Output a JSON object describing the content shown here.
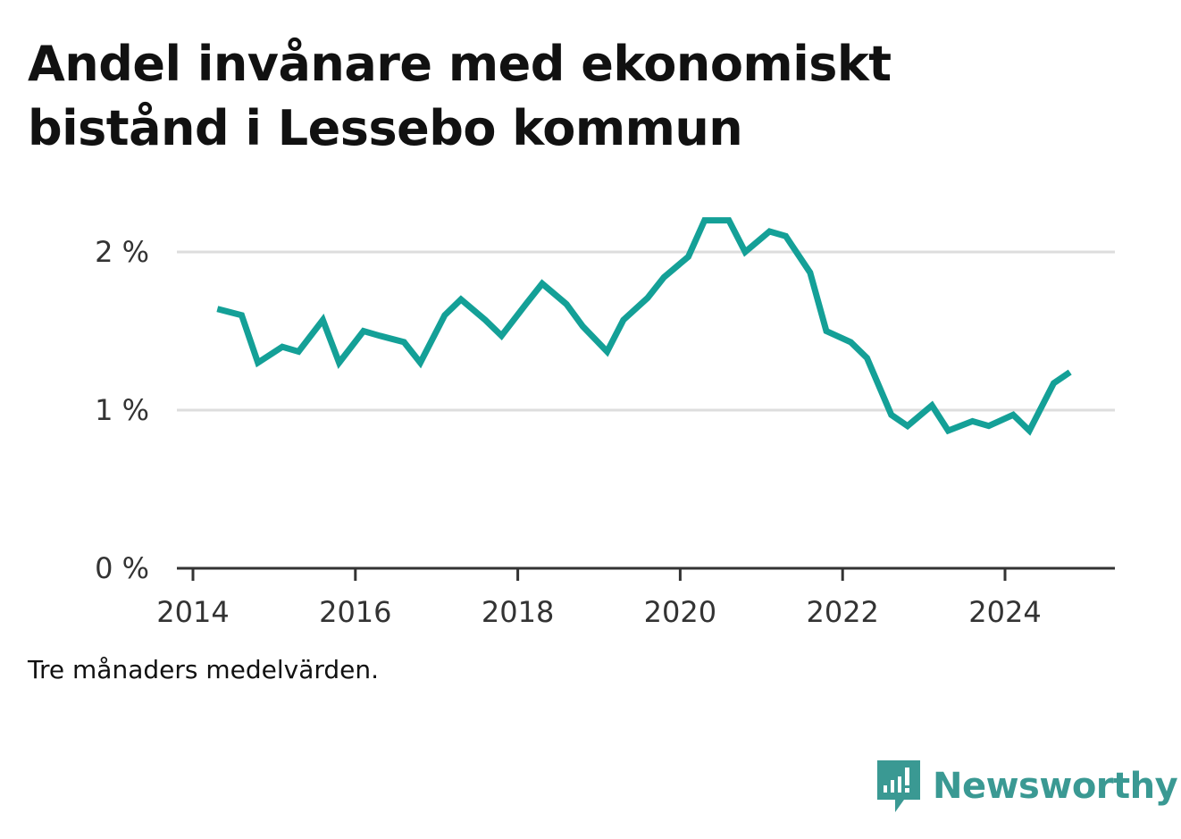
{
  "title_lines": [
    "Andel invånare med ekonomiskt",
    "bistånd i Lessebo kommun"
  ],
  "note": "Tre månaders medelvärden.",
  "brand": {
    "name": "Newsworthy",
    "color": "#3a9993"
  },
  "colors": {
    "line": "#14a097",
    "grid": "#dddddd",
    "axis": "#333333"
  },
  "chart_data": {
    "type": "line",
    "title": "Andel invånare med ekonomiskt bistånd i Lessebo kommun",
    "xlabel": "",
    "ylabel": "",
    "ylim": [
      0,
      2.2
    ],
    "xlim": [
      2013.9,
      2025.35
    ],
    "grid": true,
    "x_ticks": [
      2014,
      2016,
      2018,
      2020,
      2022,
      2024
    ],
    "x_tick_labels": [
      "2014",
      "2016",
      "2018",
      "2020",
      "2022",
      "2024"
    ],
    "y_ticks": [
      0,
      1,
      2
    ],
    "y_tick_labels": [
      "0 %",
      "1 %",
      "2 %"
    ],
    "series": [
      {
        "x": [
          2014.3,
          2014.6,
          2014.8,
          2015.1,
          2015.3,
          2015.6,
          2015.8,
          2016.1,
          2016.3,
          2016.6,
          2016.8,
          2017.1,
          2017.3,
          2017.6,
          2017.8,
          2018.1,
          2018.3,
          2018.6,
          2018.8,
          2019.1,
          2019.3,
          2019.6,
          2019.8,
          2020.1,
          2020.3,
          2020.6,
          2020.8,
          2021.1,
          2021.3,
          2021.6,
          2021.8,
          2022.1,
          2022.3,
          2022.6,
          2022.8,
          2023.1,
          2023.3,
          2023.6,
          2023.8,
          2024.1,
          2024.3,
          2024.6,
          2024.8
        ],
        "values": [
          1.64,
          1.6,
          1.3,
          1.4,
          1.37,
          1.57,
          1.3,
          1.5,
          1.47,
          1.43,
          1.3,
          1.6,
          1.7,
          1.57,
          1.47,
          1.67,
          1.8,
          1.67,
          1.53,
          1.37,
          1.57,
          1.71,
          1.84,
          1.97,
          2.2,
          2.2,
          2.0,
          2.13,
          2.1,
          1.87,
          1.5,
          1.43,
          1.33,
          0.97,
          0.9,
          1.03,
          0.87,
          0.93,
          0.9,
          0.97,
          0.87,
          1.17,
          1.24
        ]
      }
    ]
  }
}
